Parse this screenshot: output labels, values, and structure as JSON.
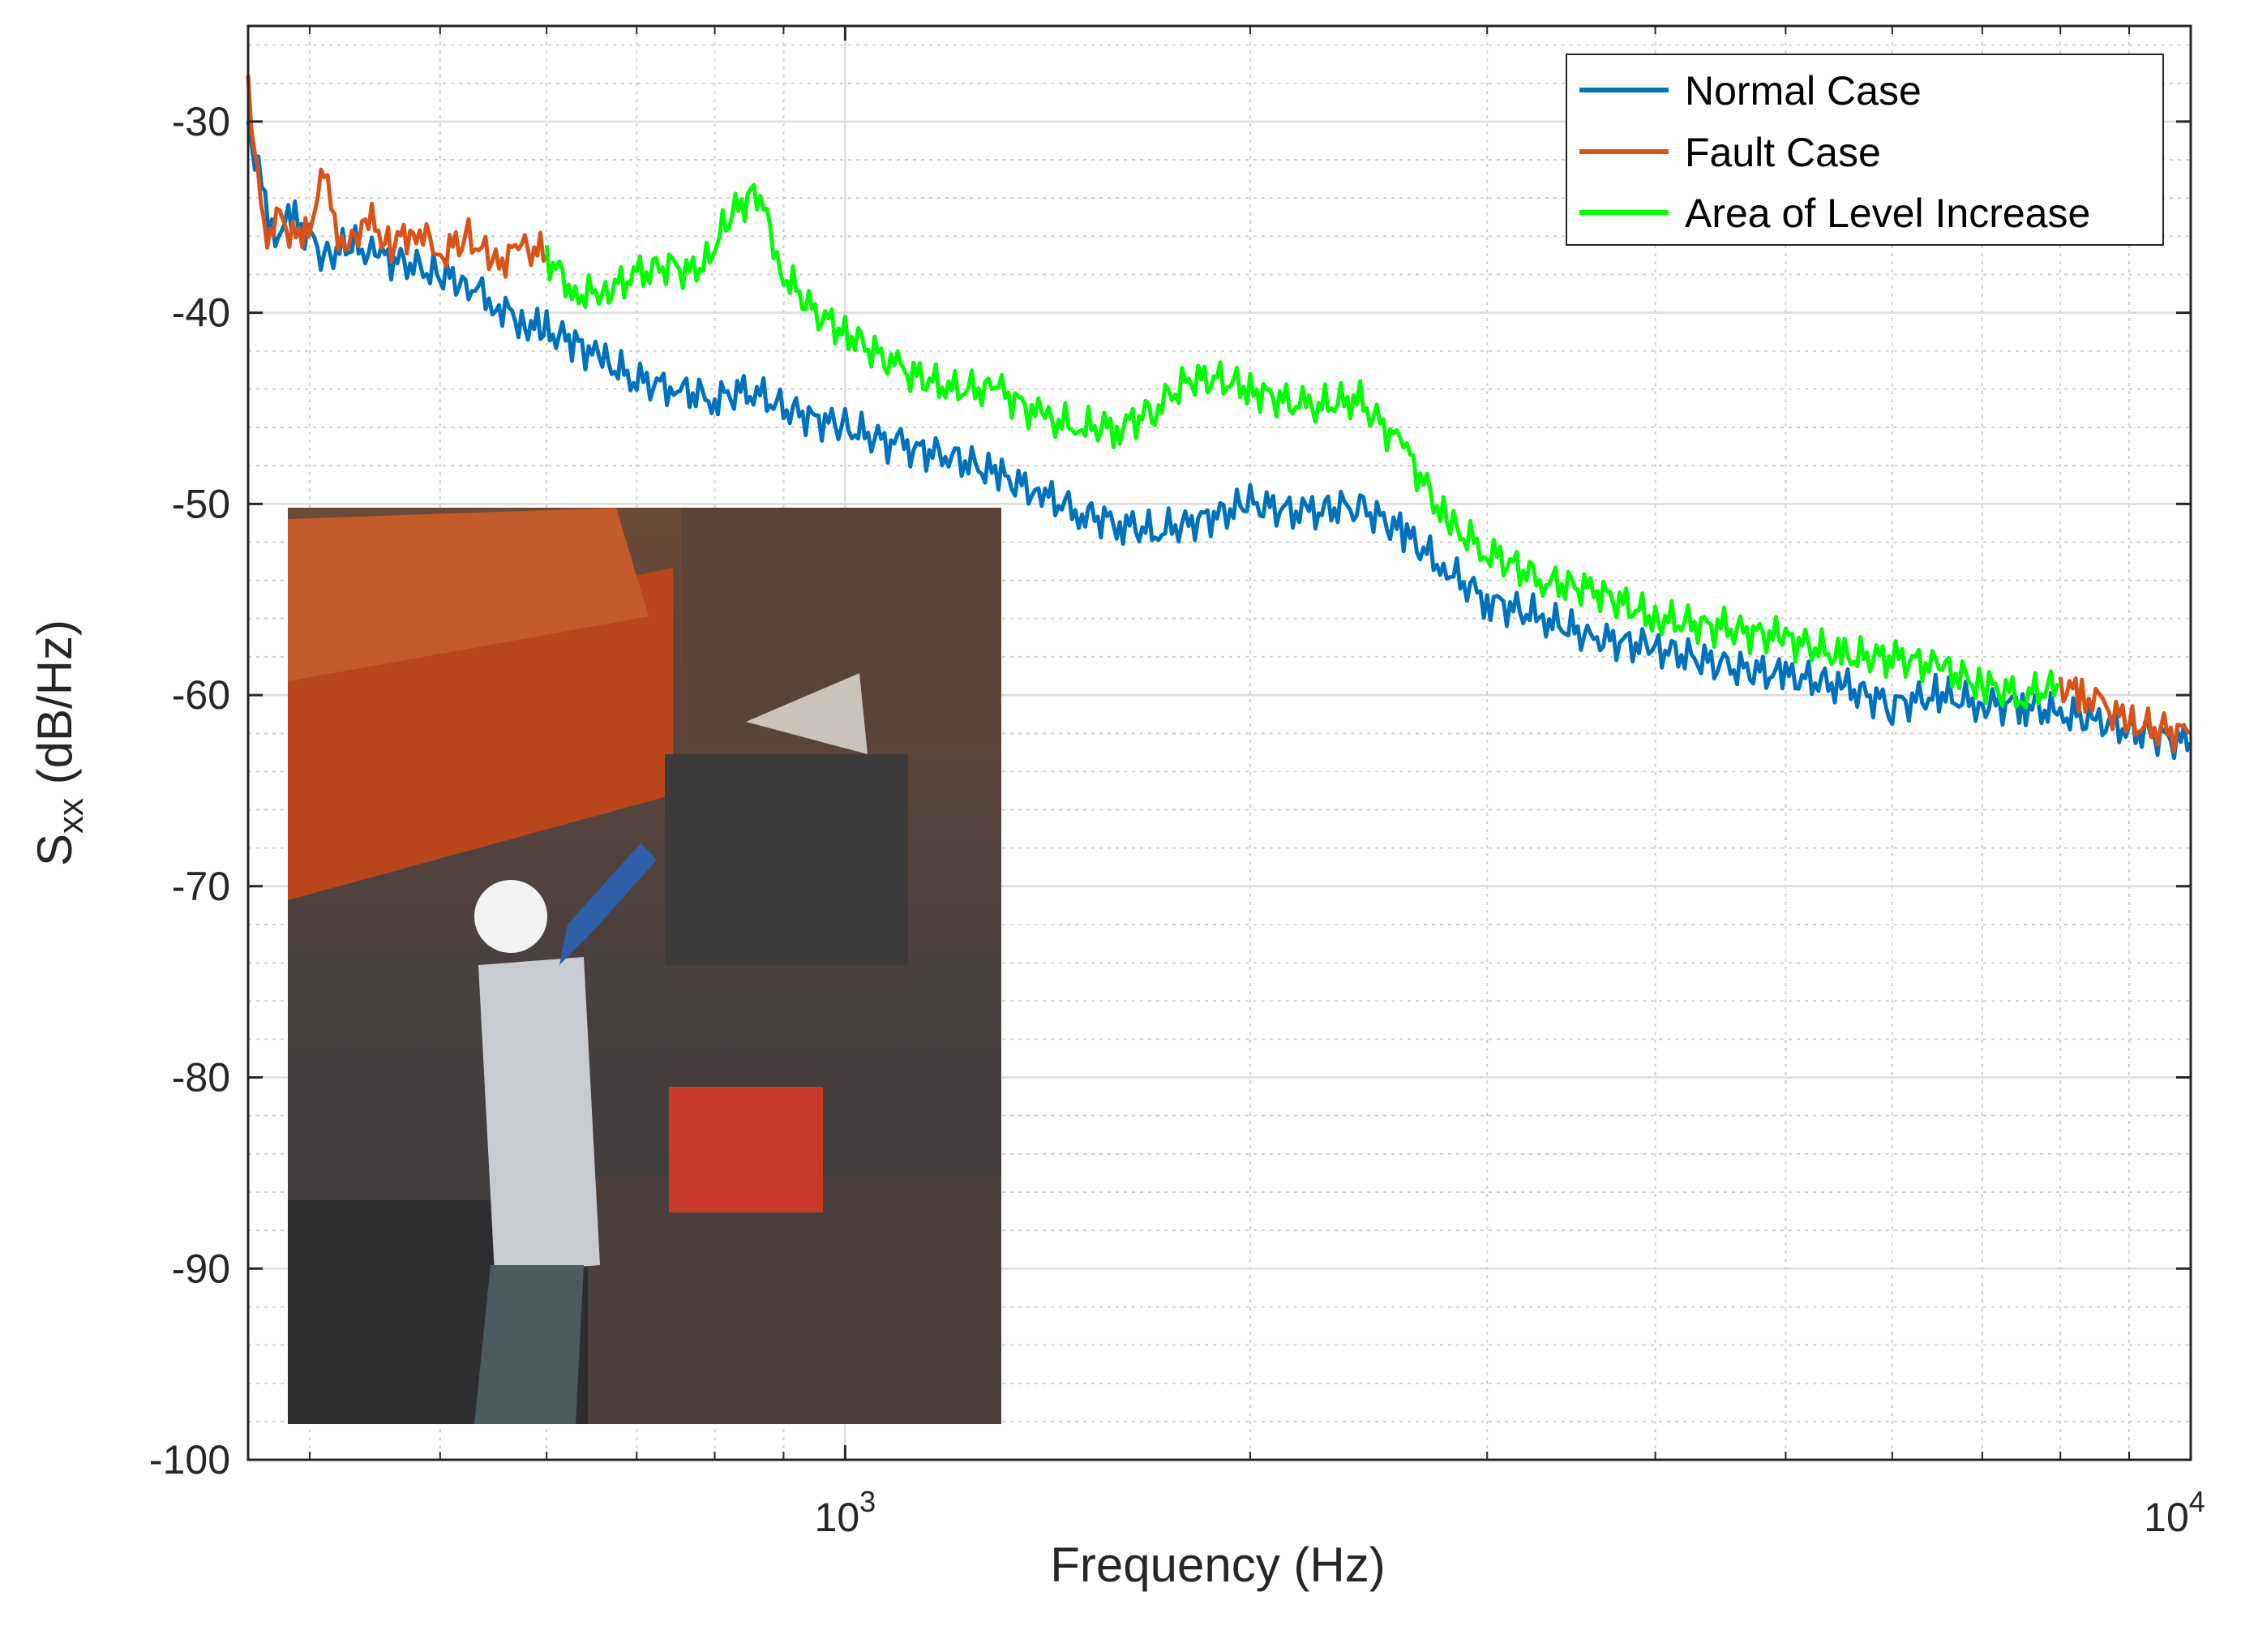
{
  "chart_data": {
    "type": "line",
    "xscale": "log",
    "xlim": [
      360,
      10000
    ],
    "ylim": [
      -100,
      -25
    ],
    "xlabel": "Frequency (Hz)",
    "ylabel_main": "S",
    "ylabel_sub": "xx",
    "ylabel_unit": " (dB/Hz)",
    "x_ticks": [
      {
        "value": 1000,
        "base": "10",
        "exp": "3"
      },
      {
        "value": 10000,
        "base": "10",
        "exp": "4"
      }
    ],
    "y_ticks": [
      -30,
      -40,
      -50,
      -60,
      -70,
      -80,
      -90,
      -100
    ],
    "grid": true,
    "minor_grid": true,
    "legend_position": "top-right",
    "series": [
      {
        "name": "Normal Case",
        "color": "#0072BD",
        "points": [
          [
            360,
            -30
          ],
          [
            375,
            -36
          ],
          [
            390,
            -35
          ],
          [
            410,
            -37
          ],
          [
            430,
            -36.5
          ],
          [
            450,
            -37
          ],
          [
            475,
            -37.5
          ],
          [
            500,
            -38
          ],
          [
            525,
            -38.5
          ],
          [
            550,
            -39.5
          ],
          [
            575,
            -40.5
          ],
          [
            600,
            -41
          ],
          [
            630,
            -41.5
          ],
          [
            660,
            -42.5
          ],
          [
            700,
            -43.5
          ],
          [
            750,
            -44
          ],
          [
            800,
            -44.5
          ],
          [
            850,
            -44
          ],
          [
            900,
            -45
          ],
          [
            950,
            -45.5
          ],
          [
            1000,
            -46
          ],
          [
            1100,
            -47
          ],
          [
            1200,
            -47.5
          ],
          [
            1300,
            -48.5
          ],
          [
            1400,
            -49.5
          ],
          [
            1500,
            -50.5
          ],
          [
            1600,
            -51
          ],
          [
            1700,
            -51.5
          ],
          [
            1800,
            -51
          ],
          [
            1900,
            -50.5
          ],
          [
            2000,
            -50
          ],
          [
            2200,
            -50.5
          ],
          [
            2400,
            -50
          ],
          [
            2600,
            -51.5
          ],
          [
            2800,
            -53.5
          ],
          [
            3000,
            -55
          ],
          [
            3300,
            -56
          ],
          [
            3600,
            -57
          ],
          [
            4000,
            -57.5
          ],
          [
            4500,
            -58.5
          ],
          [
            5000,
            -59
          ],
          [
            5500,
            -59.5
          ],
          [
            6000,
            -60.5
          ],
          [
            6500,
            -60
          ],
          [
            7000,
            -60.5
          ],
          [
            7500,
            -60.5
          ],
          [
            8000,
            -61
          ],
          [
            8500,
            -61.3
          ],
          [
            9000,
            -61.8
          ],
          [
            9500,
            -62.2
          ],
          [
            10000,
            -62.5
          ]
        ]
      },
      {
        "name": "Fault Case",
        "color": "#D95319",
        "points": [
          [
            360,
            -28
          ],
          [
            370,
            -36
          ],
          [
            380,
            -35
          ],
          [
            395,
            -36.5
          ],
          [
            410,
            -33
          ],
          [
            425,
            -37
          ],
          [
            440,
            -35
          ],
          [
            460,
            -36.5
          ],
          [
            480,
            -35.5
          ],
          [
            500,
            -37
          ],
          [
            525,
            -36
          ],
          [
            550,
            -37.5
          ],
          [
            575,
            -36.5
          ],
          [
            600,
            -37
          ],
          [
            8000,
            -59.5
          ],
          [
            8300,
            -60
          ],
          [
            8600,
            -60.5
          ],
          [
            9000,
            -61.5
          ],
          [
            9500,
            -61.8
          ],
          [
            10000,
            -62
          ]
        ]
      },
      {
        "name": "Area of Level Increase",
        "color": "#00FF00",
        "points": [
          [
            600,
            -37
          ],
          [
            630,
            -39
          ],
          [
            660,
            -39
          ],
          [
            700,
            -38
          ],
          [
            740,
            -37.5
          ],
          [
            780,
            -38
          ],
          [
            820,
            -35
          ],
          [
            860,
            -33.5
          ],
          [
            900,
            -38
          ],
          [
            950,
            -40
          ],
          [
            1000,
            -41
          ],
          [
            1100,
            -43
          ],
          [
            1200,
            -44
          ],
          [
            1300,
            -44
          ],
          [
            1400,
            -45.5
          ],
          [
            1500,
            -46
          ],
          [
            1600,
            -46
          ],
          [
            1700,
            -45
          ],
          [
            1800,
            -43.5
          ],
          [
            1900,
            -43.5
          ],
          [
            2000,
            -44
          ],
          [
            2200,
            -45
          ],
          [
            2400,
            -44.5
          ],
          [
            2600,
            -47
          ],
          [
            2800,
            -51
          ],
          [
            3000,
            -52.5
          ],
          [
            3300,
            -54
          ],
          [
            3600,
            -54.5
          ],
          [
            4000,
            -56
          ],
          [
            4500,
            -56.5
          ],
          [
            5000,
            -57
          ],
          [
            5500,
            -58
          ],
          [
            6000,
            -58
          ],
          [
            6500,
            -58.5
          ],
          [
            7000,
            -59.5
          ],
          [
            7500,
            -60
          ],
          [
            8000,
            -59.5
          ]
        ]
      }
    ]
  }
}
